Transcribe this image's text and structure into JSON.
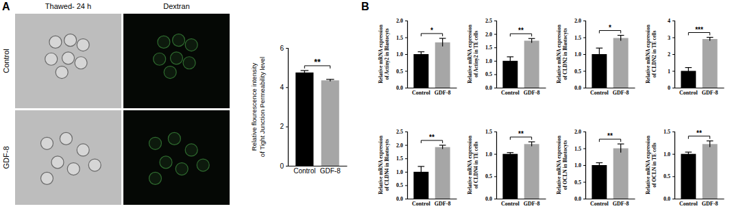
{
  "figure": {
    "panels": [
      "A",
      "B"
    ],
    "image_columns": [
      "Thawed- 24 h",
      "Dextran"
    ],
    "image_rows": [
      "Control",
      "GDF-8"
    ]
  },
  "chart_data": [
    {
      "type": "bar",
      "categories": [
        "Control",
        "GDF-8"
      ],
      "values": [
        4.75,
        4.35
      ],
      "errors": [
        0.1,
        0.05
      ],
      "colors": [
        "#000000",
        "#a6a6a6"
      ],
      "ylabel": [
        "Relative flourescence intensity",
        "of Tight Junction Permeability level"
      ],
      "ylim": [
        0,
        6
      ],
      "yticks": [
        0,
        2,
        4,
        6
      ],
      "annotations": [
        "**"
      ]
    },
    {
      "type": "bar",
      "categories": [
        "Control",
        "GDF-8"
      ],
      "values": [
        1.0,
        1.35
      ],
      "errors": [
        0.07,
        0.12
      ],
      "colors": [
        "#000000",
        "#a6a6a6"
      ],
      "ylabel": [
        "Relative mRNA expression",
        "of Actiny2 in Blastocyts"
      ],
      "ylim": [
        0,
        2
      ],
      "yticks": [
        {
          "value": 0,
          "label": "0.0"
        },
        {
          "value": 0.5,
          "label": "0.5"
        },
        {
          "value": 1,
          "label": "1.0"
        },
        {
          "value": 1.5,
          "label": "1.5"
        },
        {
          "value": 2,
          "label": "2.0"
        }
      ],
      "annotations": [
        "*"
      ]
    },
    {
      "type": "bar",
      "categories": [
        "Control",
        "GDF-8"
      ],
      "values": [
        1.0,
        1.75
      ],
      "errors": [
        0.15,
        0.08
      ],
      "colors": [
        "#000000",
        "#a6a6a6"
      ],
      "ylabel": [
        "Relative mRNA expression",
        "of Actiny2 in TE cells"
      ],
      "ylim": [
        0,
        2.5
      ],
      "yticks": [
        {
          "value": 0,
          "label": "0.0"
        },
        {
          "value": 0.5,
          "label": "0.5"
        },
        {
          "value": 1,
          "label": "1.0"
        },
        {
          "value": 1.5,
          "label": "1.5"
        },
        {
          "value": 2,
          "label": "2.0"
        },
        {
          "value": 2.5,
          "label": "2.5"
        }
      ],
      "annotations": [
        "**"
      ]
    },
    {
      "type": "bar",
      "categories": [
        "Control",
        "GDF-8"
      ],
      "values": [
        1.0,
        1.48
      ],
      "errors": [
        0.18,
        0.08
      ],
      "colors": [
        "#000000",
        "#a6a6a6"
      ],
      "ylabel": [
        "Relative mRNA expression",
        "of CLDN2 in Blastocyts"
      ],
      "ylim": [
        0,
        2
      ],
      "yticks": [
        {
          "value": 0,
          "label": "0.0"
        },
        {
          "value": 0.5,
          "label": "0.5"
        },
        {
          "value": 1,
          "label": "1.0"
        },
        {
          "value": 1.5,
          "label": "1.5"
        },
        {
          "value": 2,
          "label": "2.0"
        }
      ],
      "annotations": [
        "*"
      ]
    },
    {
      "type": "bar",
      "categories": [
        "Control",
        "GDF-8"
      ],
      "values": [
        1.0,
        2.9
      ],
      "errors": [
        0.2,
        0.1
      ],
      "colors": [
        "#000000",
        "#a6a6a6"
      ],
      "ylabel": [
        "Relative mRNA expression",
        "of CLDN2 in TE cells"
      ],
      "ylim": [
        0,
        4
      ],
      "yticks": [
        0,
        1,
        2,
        3,
        4
      ],
      "annotations": [
        "***"
      ]
    },
    {
      "type": "bar",
      "categories": [
        "Control",
        "GDF-8"
      ],
      "values": [
        1.0,
        1.92
      ],
      "errors": [
        0.2,
        0.07
      ],
      "colors": [
        "#000000",
        "#a6a6a6"
      ],
      "ylabel": [
        "Relative mRNA expression",
        "of CLDN4 in Blastocyts"
      ],
      "ylim": [
        0,
        2.5
      ],
      "yticks": [
        {
          "value": 0,
          "label": "0.0"
        },
        {
          "value": 0.5,
          "label": "0.5"
        },
        {
          "value": 1,
          "label": "1.0"
        },
        {
          "value": 1.5,
          "label": "1.5"
        },
        {
          "value": 2,
          "label": "2.0"
        },
        {
          "value": 2.5,
          "label": "2.5"
        }
      ],
      "annotations": [
        "**"
      ]
    },
    {
      "type": "bar",
      "categories": [
        "Control",
        "GDF-8"
      ],
      "values": [
        1.0,
        1.22
      ],
      "errors": [
        0.03,
        0.05
      ],
      "colors": [
        "#000000",
        "#a6a6a6"
      ],
      "ylabel": [
        "Relative mRNA expression",
        "of CLDN4 in TE cells"
      ],
      "ylim": [
        0,
        1.5
      ],
      "yticks": [
        {
          "value": 0,
          "label": "0.0"
        },
        {
          "value": 0.5,
          "label": "0.5"
        },
        {
          "value": 1,
          "label": "1.0"
        },
        {
          "value": 1.5,
          "label": "1.5"
        }
      ],
      "annotations": [
        "**"
      ]
    },
    {
      "type": "bar",
      "categories": [
        "Control",
        "GDF-8"
      ],
      "values": [
        1.0,
        1.5
      ],
      "errors": [
        0.07,
        0.13
      ],
      "colors": [
        "#000000",
        "#a6a6a6"
      ],
      "ylabel": [
        "Relative mRNA expression",
        "of OCLN in Blastocyts"
      ],
      "ylim": [
        0,
        2
      ],
      "yticks": [
        {
          "value": 0,
          "label": "0.0"
        },
        {
          "value": 0.5,
          "label": "0.5"
        },
        {
          "value": 1,
          "label": "1.0"
        },
        {
          "value": 1.5,
          "label": "1.5"
        },
        {
          "value": 2,
          "label": "2.0"
        }
      ],
      "annotations": [
        "**"
      ]
    },
    {
      "type": "bar",
      "categories": [
        "Control",
        "GDF-8"
      ],
      "values": [
        1.0,
        1.22
      ],
      "errors": [
        0.04,
        0.07
      ],
      "colors": [
        "#000000",
        "#a6a6a6"
      ],
      "ylabel": [
        "Relative mRNA expression",
        "of OCLN in TE cells"
      ],
      "ylim": [
        0,
        1.5
      ],
      "yticks": [
        {
          "value": 0,
          "label": "0.0"
        },
        {
          "value": 0.5,
          "label": "0.5"
        },
        {
          "value": 1,
          "label": "1.0"
        },
        {
          "value": 1.5,
          "label": "1.5"
        }
      ],
      "annotations": [
        "**"
      ]
    }
  ]
}
